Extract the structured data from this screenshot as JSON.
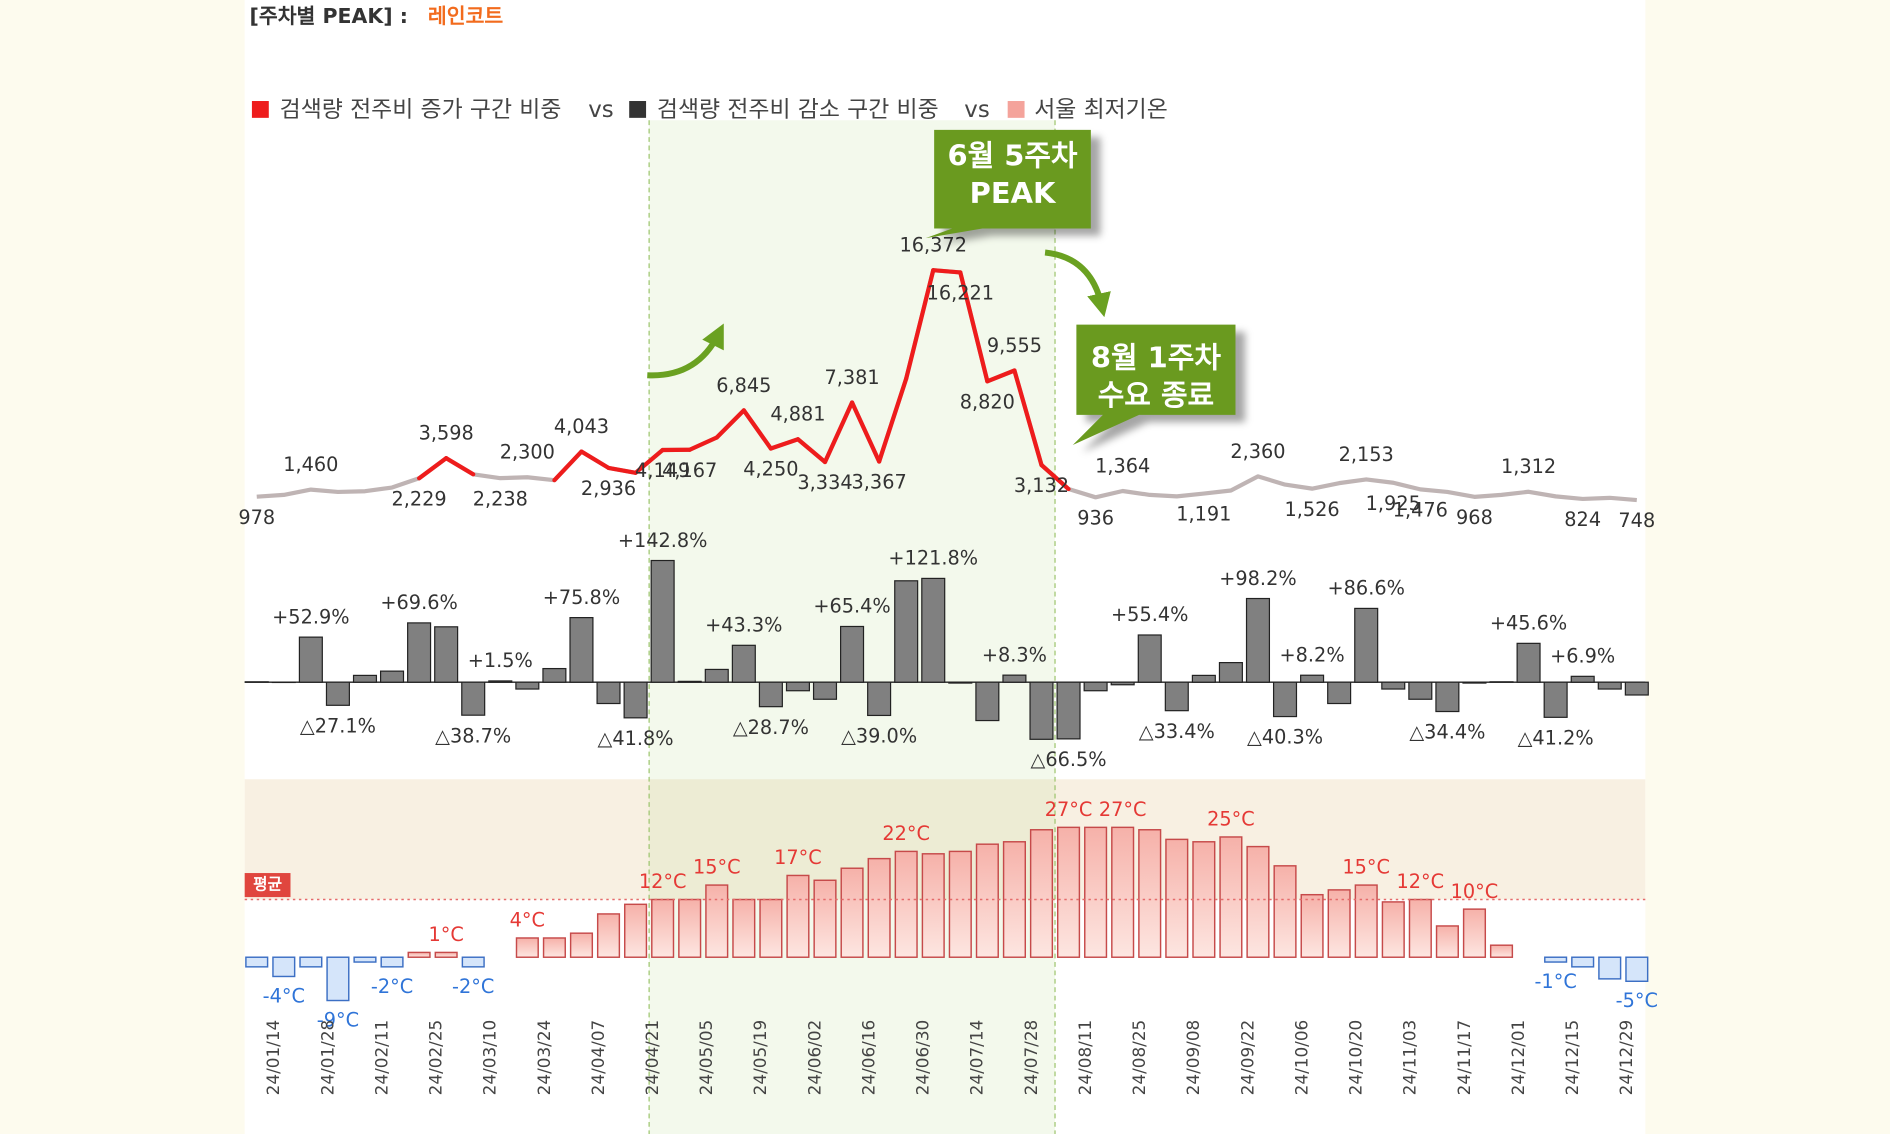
{
  "title": "[주차별 PEAK] :",
  "subtitle": "레인코트",
  "chart_data": {
    "type": "combo",
    "legend_separator": "vs",
    "categories": [
      null,
      "24/01/14",
      null,
      "24/01/28",
      null,
      "24/02/11",
      null,
      "24/02/25",
      null,
      "24/03/10",
      null,
      "24/03/24",
      null,
      "24/04/07",
      null,
      "24/04/21",
      null,
      "24/05/05",
      null,
      "24/05/19",
      null,
      "24/06/02",
      null,
      "24/06/16",
      null,
      "24/06/30",
      null,
      "24/07/14",
      null,
      "24/07/28",
      null,
      "24/08/11",
      null,
      "24/08/25",
      null,
      "24/09/08",
      null,
      "24/09/22",
      null,
      "24/10/06",
      null,
      "24/10/20",
      null,
      "24/11/03",
      null,
      "24/11/17",
      null,
      "24/12/01",
      null,
      "24/12/15",
      null,
      "24/12/29"
    ],
    "series": [
      {
        "name": "검색량 전주비 증가 구간 비중",
        "type": "line",
        "color": "#ee1c1c",
        "base_color": "#bfb4b4",
        "ylim": [
          0,
          17000
        ],
        "values": [
          978,
          1100,
          1460,
          1300,
          1350,
          1600,
          2229,
          3598,
          2500,
          2238,
          2300,
          2100,
          4043,
          2936,
          2600,
          4149,
          4167,
          5000,
          6845,
          4250,
          4881,
          3334,
          7381,
          3367,
          9000,
          16372,
          16221,
          8820,
          9555,
          3132,
          1500,
          936,
          1364,
          1100,
          1000,
          1191,
          1400,
          2360,
          1800,
          1526,
          1900,
          2153,
          1925,
          1476,
          1300,
          968,
          1100,
          1312,
          1000,
          824,
          900,
          748
        ],
        "value_labels": [
          "978",
          null,
          "1,460",
          null,
          null,
          null,
          "2,229",
          "3,598",
          null,
          "2,238",
          "2,300",
          null,
          "4,043",
          "2,936",
          null,
          "4,149",
          "4,167",
          null,
          "6,845",
          "4,250",
          "4,881",
          "3,334",
          "7,381",
          "3,367",
          null,
          "16,372",
          "16,221",
          "8,820",
          "9,555",
          "3,132",
          null,
          "936",
          "1,364",
          null,
          null,
          "1,191",
          null,
          "2,360",
          null,
          "1,526",
          null,
          "2,153",
          "1,925",
          "1,476",
          null,
          "968",
          null,
          "1,312",
          null,
          "824",
          null,
          "748"
        ],
        "highlighted": [
          false,
          false,
          false,
          false,
          false,
          false,
          true,
          true,
          true,
          false,
          false,
          true,
          true,
          true,
          true,
          true,
          true,
          true,
          true,
          true,
          true,
          true,
          true,
          true,
          true,
          true,
          true,
          true,
          true,
          true,
          true,
          false,
          false,
          false,
          false,
          false,
          false,
          false,
          false,
          false,
          false,
          false,
          false,
          false,
          false,
          false,
          false,
          false,
          false,
          false,
          false,
          false
        ]
      },
      {
        "name": "검색량 전주비 감소 구간 비중",
        "type": "bar",
        "color": "#333333",
        "fill": "#808080",
        "ylim": [
          -80,
          150
        ],
        "values": [
          0.5,
          -0.3,
          52.9,
          -27.1,
          8,
          13,
          69.6,
          65,
          -38.7,
          1.5,
          -8,
          16,
          75.8,
          -25,
          -41.8,
          142.8,
          1,
          15,
          43.3,
          -28.7,
          -10,
          -20,
          65.4,
          -39,
          119,
          121.8,
          -1,
          -45,
          8.3,
          -67,
          -66.5,
          -10,
          -3,
          55.4,
          -33.4,
          8,
          23,
          98.2,
          -40.3,
          8.2,
          -25,
          86.6,
          -8,
          -20,
          -34.4,
          -1,
          0.5,
          45.6,
          -41.2,
          6.9,
          -8,
          -15
        ],
        "value_labels": [
          null,
          null,
          "+52.9%",
          "△27.1%",
          null,
          null,
          "+69.6%",
          null,
          "△38.7%",
          "+1.5%",
          null,
          null,
          "+75.8%",
          null,
          "△41.8%",
          "+142.8%",
          null,
          null,
          "+43.3%",
          "△28.7%",
          null,
          null,
          "+65.4%",
          "△39.0%",
          null,
          "+121.8%",
          null,
          null,
          "+8.3%",
          null,
          "△66.5%",
          null,
          null,
          "+55.4%",
          "△33.4%",
          null,
          null,
          "+98.2%",
          "△40.3%",
          "+8.2%",
          null,
          "+86.6%",
          null,
          null,
          "△34.4%",
          null,
          null,
          "+45.6%",
          "△41.2%",
          "+6.9%",
          null,
          null
        ]
      },
      {
        "name": "서울 최저기온",
        "type": "bar",
        "color": "#f4a39b",
        "negative_color": "#d5e5fa",
        "ylim": [
          -10,
          30
        ],
        "average": {
          "label": "평균",
          "value": 12
        },
        "values": [
          -2,
          -4,
          -2,
          -9,
          -1,
          -2,
          1,
          1,
          -2,
          0,
          4,
          4,
          5,
          9,
          11,
          12,
          12,
          15,
          12,
          12,
          17,
          16,
          18.5,
          20.5,
          22,
          21.5,
          22,
          23.5,
          24,
          26.5,
          27,
          27,
          27,
          26.5,
          24.5,
          24,
          25,
          23,
          19,
          13,
          14,
          15,
          11.5,
          12,
          6.5,
          10,
          2.5,
          0,
          -1,
          -2,
          -4.5,
          -5
        ],
        "value_labels": [
          null,
          "-4°C",
          null,
          "-9°C",
          null,
          "-2°C",
          null,
          "1°C",
          "-2°C",
          null,
          "4°C",
          null,
          null,
          null,
          null,
          "12°C",
          null,
          "15°C",
          null,
          null,
          "17°C",
          null,
          null,
          null,
          "22°C",
          null,
          null,
          null,
          null,
          null,
          "27°C",
          null,
          "27°C",
          null,
          null,
          null,
          "25°C",
          null,
          null,
          null,
          null,
          "15°C",
          null,
          "12°C",
          null,
          "10°C",
          null,
          null,
          "-1°C",
          null,
          null,
          "-5°C"
        ]
      }
    ],
    "annotations": [
      {
        "lines": [
          "6월 5주차",
          "PEAK"
        ]
      },
      {
        "lines": [
          "8월 1주차",
          "수요 종료"
        ]
      }
    ]
  }
}
